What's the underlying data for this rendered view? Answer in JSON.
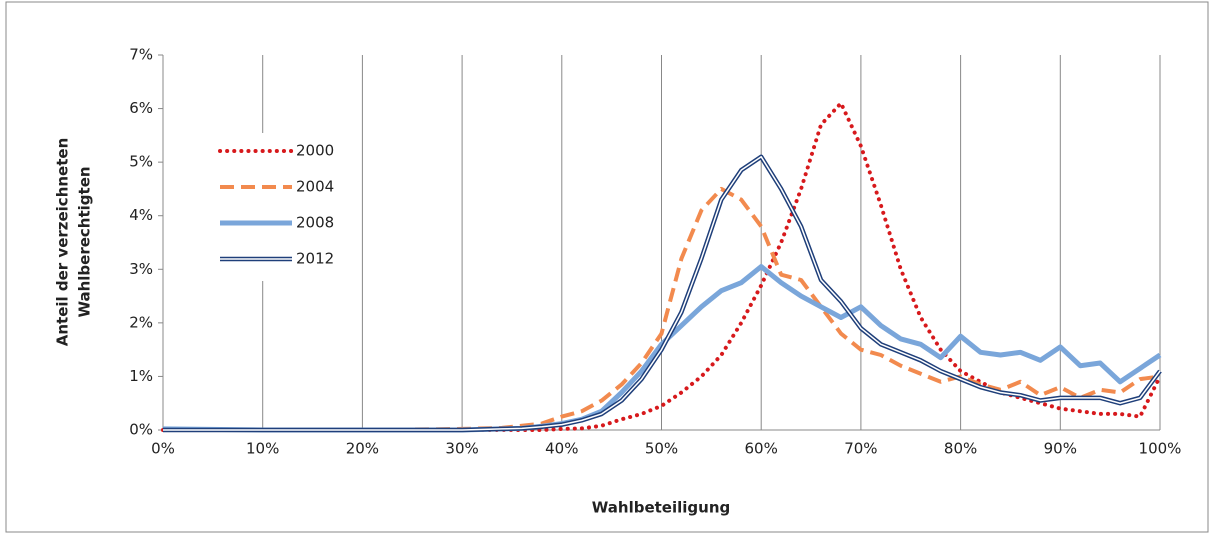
{
  "chart_data": {
    "type": "line",
    "x_label": "Wahlbeteiligung",
    "y_label": [
      "Anteil der verzeichneten",
      "Wahlberechtigten"
    ],
    "x": [
      0,
      10,
      20,
      30,
      34,
      36,
      38,
      40,
      42,
      44,
      46,
      48,
      50,
      52,
      54,
      56,
      58,
      60,
      62,
      64,
      66,
      68,
      70,
      72,
      74,
      76,
      78,
      80,
      82,
      84,
      86,
      88,
      90,
      92,
      94,
      96,
      98,
      100
    ],
    "series": [
      {
        "name": "2000",
        "color": "#d7191c",
        "style": "dotted",
        "values": [
          0,
          0,
          0,
          0,
          0,
          0,
          0,
          0.02,
          0.03,
          0.08,
          0.2,
          0.3,
          0.45,
          0.7,
          1.0,
          1.4,
          2.0,
          2.7,
          3.5,
          4.5,
          5.7,
          6.1,
          5.3,
          4.2,
          3.0,
          2.1,
          1.5,
          1.1,
          0.9,
          0.7,
          0.6,
          0.5,
          0.4,
          0.35,
          0.3,
          0.3,
          0.25,
          1.0
        ]
      },
      {
        "name": "2004",
        "color": "#f28a4e",
        "style": "dashed",
        "values": [
          0,
          0,
          0,
          0.02,
          0.04,
          0.08,
          0.12,
          0.25,
          0.35,
          0.55,
          0.85,
          1.25,
          1.8,
          3.2,
          4.1,
          4.5,
          4.3,
          3.8,
          2.9,
          2.8,
          2.3,
          1.8,
          1.5,
          1.4,
          1.2,
          1.05,
          0.9,
          1.0,
          0.85,
          0.75,
          0.9,
          0.65,
          0.8,
          0.6,
          0.75,
          0.7,
          0.95,
          1.0
        ]
      },
      {
        "name": "2008",
        "color": "#7aa6da",
        "style": "thick",
        "values": [
          0.02,
          0,
          0,
          0,
          0.02,
          0.03,
          0.07,
          0.12,
          0.2,
          0.35,
          0.7,
          1.1,
          1.6,
          1.95,
          2.3,
          2.6,
          2.75,
          3.05,
          2.75,
          2.5,
          2.3,
          2.1,
          2.3,
          1.95,
          1.7,
          1.6,
          1.35,
          1.75,
          1.45,
          1.4,
          1.45,
          1.3,
          1.55,
          1.2,
          1.25,
          0.9,
          1.15,
          1.4
        ]
      },
      {
        "name": "2012",
        "color": "#1f3f7a",
        "style": "double",
        "values": [
          0,
          0,
          0,
          0,
          0.02,
          0.03,
          0.06,
          0.1,
          0.18,
          0.3,
          0.55,
          0.95,
          1.5,
          2.2,
          3.2,
          4.3,
          4.85,
          5.1,
          4.5,
          3.8,
          2.8,
          2.4,
          1.9,
          1.6,
          1.45,
          1.3,
          1.1,
          0.95,
          0.8,
          0.7,
          0.65,
          0.55,
          0.6,
          0.6,
          0.6,
          0.5,
          0.6,
          1.1
        ]
      }
    ],
    "xlim": [
      0,
      100
    ],
    "xticks": [
      {
        "value": 0,
        "label": "0%"
      },
      {
        "value": 10,
        "label": "10%"
      },
      {
        "value": 20,
        "label": "20%"
      },
      {
        "value": 30,
        "label": "30%"
      },
      {
        "value": 40,
        "label": "40%"
      },
      {
        "value": 50,
        "label": "50%"
      },
      {
        "value": 60,
        "label": "60%"
      },
      {
        "value": 70,
        "label": "70%"
      },
      {
        "value": 80,
        "label": "80%"
      },
      {
        "value": 90,
        "label": "90%"
      },
      {
        "value": 100,
        "label": "100%"
      }
    ],
    "ylim": [
      0,
      7
    ],
    "yticks": [
      {
        "value": 0,
        "label": "0%"
      },
      {
        "value": 1,
        "label": "1%"
      },
      {
        "value": 2,
        "label": "2%"
      },
      {
        "value": 3,
        "label": "3%"
      },
      {
        "value": 4,
        "label": "4%"
      },
      {
        "value": 5,
        "label": "5%"
      },
      {
        "value": 6,
        "label": "6%"
      },
      {
        "value": 7,
        "label": "7%"
      }
    ],
    "grid": "x",
    "legend": "upper-left"
  }
}
